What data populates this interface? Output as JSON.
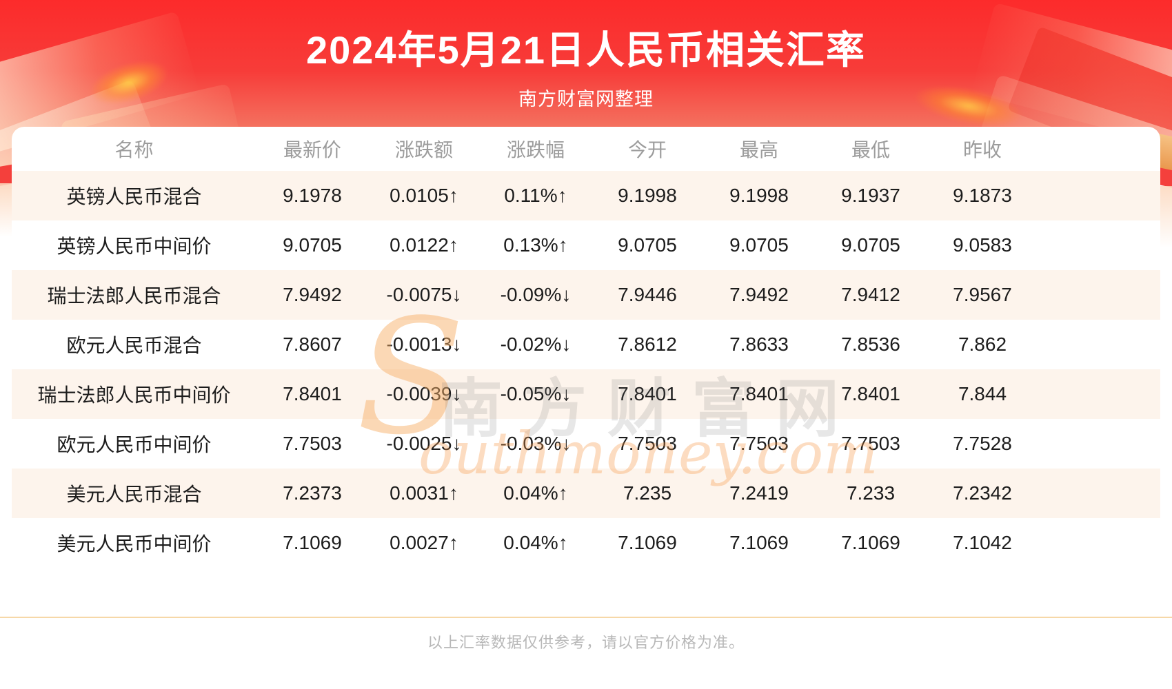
{
  "header": {
    "title": "2024年5月21日人民币相关汇率",
    "subtitle": "南方财富网整理"
  },
  "watermark": {
    "initial": "S",
    "cn_text": "南方财富网",
    "en_text": "outhmoney.com"
  },
  "footer": {
    "note": "以上汇率数据仅供参考，请以官方价格为准。"
  },
  "colors": {
    "up": "#f80808",
    "down": "#0a9b0b",
    "band_top": "#fc2b2b",
    "band_bottom": "#fbb188",
    "row_alt_bg": "#fdf4ec",
    "divider": "#f6d8a8"
  },
  "chart_data": {
    "type": "table",
    "title": "2024年5月21日人民币相关汇率",
    "columns": [
      "名称",
      "最新价",
      "涨跌额",
      "涨跌幅",
      "今开",
      "最高",
      "最低",
      "昨收"
    ],
    "arrows": {
      "up": "↑",
      "down": "↓"
    },
    "rows": [
      {
        "name": "英镑人民币混合",
        "last": "9.1978",
        "change": "0.0105",
        "change_pct": "0.11%",
        "open": "9.1998",
        "high": "9.1998",
        "low": "9.1937",
        "prev_close": "9.1873",
        "trend": "up"
      },
      {
        "name": "英镑人民币中间价",
        "last": "9.0705",
        "change": "0.0122",
        "change_pct": "0.13%",
        "open": "9.0705",
        "high": "9.0705",
        "low": "9.0705",
        "prev_close": "9.0583",
        "trend": "up"
      },
      {
        "name": "瑞士法郎人民币混合",
        "last": "7.9492",
        "change": "-0.0075",
        "change_pct": "-0.09%",
        "open": "7.9446",
        "high": "7.9492",
        "low": "7.9412",
        "prev_close": "7.9567",
        "trend": "down"
      },
      {
        "name": "欧元人民币混合",
        "last": "7.8607",
        "change": "-0.0013",
        "change_pct": "-0.02%",
        "open": "7.8612",
        "high": "7.8633",
        "low": "7.8536",
        "prev_close": "7.862",
        "trend": "down"
      },
      {
        "name": "瑞士法郎人民币中间价",
        "last": "7.8401",
        "change": "-0.0039",
        "change_pct": "-0.05%",
        "open": "7.8401",
        "high": "7.8401",
        "low": "7.8401",
        "prev_close": "7.844",
        "trend": "down"
      },
      {
        "name": "欧元人民币中间价",
        "last": "7.7503",
        "change": "-0.0025",
        "change_pct": "-0.03%",
        "open": "7.7503",
        "high": "7.7503",
        "low": "7.7503",
        "prev_close": "7.7528",
        "trend": "down"
      },
      {
        "name": "美元人民币混合",
        "last": "7.2373",
        "change": "0.0031",
        "change_pct": "0.04%",
        "open": "7.235",
        "high": "7.2419",
        "low": "7.233",
        "prev_close": "7.2342",
        "trend": "up"
      },
      {
        "name": "美元人民币中间价",
        "last": "7.1069",
        "change": "0.0027",
        "change_pct": "0.04%",
        "open": "7.1069",
        "high": "7.1069",
        "low": "7.1069",
        "prev_close": "7.1042",
        "trend": "up"
      }
    ]
  }
}
